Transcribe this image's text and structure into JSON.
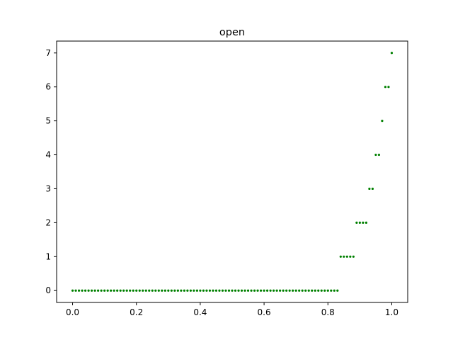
{
  "chart_data": {
    "type": "scatter",
    "title": "open",
    "xlabel": "",
    "ylabel": "",
    "xlim": [
      -0.05,
      1.05
    ],
    "ylim": [
      -0.35,
      7.35
    ],
    "xticks": [
      0.0,
      0.2,
      0.4,
      0.6,
      0.8,
      1.0
    ],
    "yticks": [
      0,
      1,
      2,
      3,
      4,
      5,
      6,
      7
    ],
    "xtick_labels": [
      "0.0",
      "0.2",
      "0.4",
      "0.6",
      "0.8",
      "1.0"
    ],
    "ytick_labels": [
      "0",
      "1",
      "2",
      "3",
      "4",
      "5",
      "6",
      "7"
    ],
    "grid": false,
    "marker_color": "#008000",
    "series": [
      {
        "points": [
          [
            0.0,
            0
          ],
          [
            0.01,
            0
          ],
          [
            0.02,
            0
          ],
          [
            0.03,
            0
          ],
          [
            0.04,
            0
          ],
          [
            0.05,
            0
          ],
          [
            0.06,
            0
          ],
          [
            0.07,
            0
          ],
          [
            0.08,
            0
          ],
          [
            0.09,
            0
          ],
          [
            0.1,
            0
          ],
          [
            0.11,
            0
          ],
          [
            0.12,
            0
          ],
          [
            0.13,
            0
          ],
          [
            0.14,
            0
          ],
          [
            0.15,
            0
          ],
          [
            0.16,
            0
          ],
          [
            0.17,
            0
          ],
          [
            0.18,
            0
          ],
          [
            0.19,
            0
          ],
          [
            0.2,
            0
          ],
          [
            0.21,
            0
          ],
          [
            0.22,
            0
          ],
          [
            0.23,
            0
          ],
          [
            0.24,
            0
          ],
          [
            0.25,
            0
          ],
          [
            0.26,
            0
          ],
          [
            0.27,
            0
          ],
          [
            0.28,
            0
          ],
          [
            0.29,
            0
          ],
          [
            0.3,
            0
          ],
          [
            0.31,
            0
          ],
          [
            0.32,
            0
          ],
          [
            0.33,
            0
          ],
          [
            0.34,
            0
          ],
          [
            0.35,
            0
          ],
          [
            0.36,
            0
          ],
          [
            0.37,
            0
          ],
          [
            0.38,
            0
          ],
          [
            0.39,
            0
          ],
          [
            0.4,
            0
          ],
          [
            0.41,
            0
          ],
          [
            0.42,
            0
          ],
          [
            0.43,
            0
          ],
          [
            0.44,
            0
          ],
          [
            0.45,
            0
          ],
          [
            0.46,
            0
          ],
          [
            0.47,
            0
          ],
          [
            0.48,
            0
          ],
          [
            0.49,
            0
          ],
          [
            0.5,
            0
          ],
          [
            0.51,
            0
          ],
          [
            0.52,
            0
          ],
          [
            0.53,
            0
          ],
          [
            0.54,
            0
          ],
          [
            0.55,
            0
          ],
          [
            0.56,
            0
          ],
          [
            0.57,
            0
          ],
          [
            0.58,
            0
          ],
          [
            0.59,
            0
          ],
          [
            0.6,
            0
          ],
          [
            0.61,
            0
          ],
          [
            0.62,
            0
          ],
          [
            0.63,
            0
          ],
          [
            0.64,
            0
          ],
          [
            0.65,
            0
          ],
          [
            0.66,
            0
          ],
          [
            0.67,
            0
          ],
          [
            0.68,
            0
          ],
          [
            0.69,
            0
          ],
          [
            0.7,
            0
          ],
          [
            0.71,
            0
          ],
          [
            0.72,
            0
          ],
          [
            0.73,
            0
          ],
          [
            0.74,
            0
          ],
          [
            0.75,
            0
          ],
          [
            0.76,
            0
          ],
          [
            0.77,
            0
          ],
          [
            0.78,
            0
          ],
          [
            0.79,
            0
          ],
          [
            0.8,
            0
          ],
          [
            0.81,
            0
          ],
          [
            0.82,
            0
          ],
          [
            0.83,
            0
          ],
          [
            0.84,
            1
          ],
          [
            0.85,
            1
          ],
          [
            0.86,
            1
          ],
          [
            0.87,
            1
          ],
          [
            0.88,
            1
          ],
          [
            0.89,
            2
          ],
          [
            0.9,
            2
          ],
          [
            0.91,
            2
          ],
          [
            0.92,
            2
          ],
          [
            0.93,
            3
          ],
          [
            0.94,
            3
          ],
          [
            0.95,
            4
          ],
          [
            0.96,
            4
          ],
          [
            0.97,
            5
          ],
          [
            0.98,
            6
          ],
          [
            0.99,
            6
          ],
          [
            1.0,
            7
          ]
        ]
      }
    ]
  }
}
